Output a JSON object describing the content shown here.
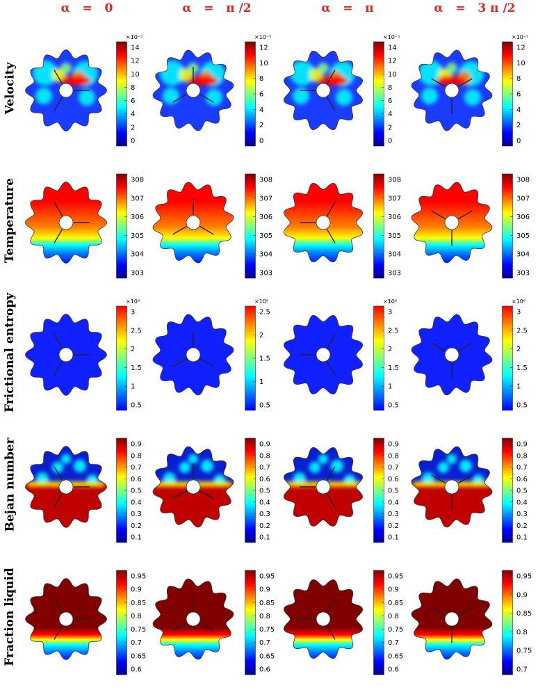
{
  "columns": [
    "α   =   0",
    "α   =   π /2",
    "α   =   π",
    "α   =   3 π /2"
  ],
  "rows": [
    {
      "label": "Velocity",
      "field": "velocity",
      "colorbars": [
        {
          "multiplier": "×10⁻⁵",
          "ticks": [
            "14",
            "12",
            "10",
            "8",
            "6",
            "4",
            "2",
            "0"
          ]
        },
        {
          "multiplier": "×10⁻⁵",
          "ticks": [
            "12",
            "10",
            "8",
            "6",
            "4",
            "2",
            "0"
          ]
        },
        {
          "multiplier": "×10⁻⁵",
          "ticks": [
            "14",
            "12",
            "10",
            "8",
            "6",
            "4",
            "2",
            "0"
          ]
        },
        {
          "multiplier": "×10⁻⁵",
          "ticks": [
            "12",
            "10",
            "8",
            "6",
            "4",
            "2",
            "0"
          ]
        }
      ]
    },
    {
      "label": "Temperature",
      "field": "temperature",
      "colorbars": [
        {
          "multiplier": "",
          "ticks": [
            "308",
            "307",
            "306",
            "305",
            "304",
            "303"
          ]
        },
        {
          "multiplier": "",
          "ticks": [
            "308",
            "307",
            "306",
            "305",
            "304",
            "303"
          ]
        },
        {
          "multiplier": "",
          "ticks": [
            "308",
            "307",
            "306",
            "305",
            "304",
            "303"
          ]
        },
        {
          "multiplier": "",
          "ticks": [
            "308",
            "307",
            "306",
            "305",
            "304",
            "303"
          ]
        }
      ]
    },
    {
      "label": "Frictional entropy",
      "field": "entropy",
      "colorbars": [
        {
          "multiplier": "×10⁸",
          "ticks": [
            "3",
            "2.5",
            "2",
            "1.5",
            "1",
            "0.5"
          ]
        },
        {
          "multiplier": "×10⁸",
          "ticks": [
            "2.5",
            "2",
            "1.5",
            "1",
            "0.5"
          ]
        },
        {
          "multiplier": "×10⁸",
          "ticks": [
            "3",
            "2.5",
            "2",
            "1.5",
            "1",
            "0.5"
          ]
        },
        {
          "multiplier": "×10⁸",
          "ticks": [
            "3",
            "2.5",
            "2",
            "1.5",
            "1",
            "0.5"
          ]
        }
      ]
    },
    {
      "label": "Bejan  number",
      "field": "bejan",
      "colorbars": [
        {
          "multiplier": "",
          "ticks": [
            "0.9",
            "0.8",
            "0.7",
            "0.6",
            "0.5",
            "0.4",
            "0.3",
            "0.2",
            "0.1"
          ]
        },
        {
          "multiplier": "",
          "ticks": [
            "0.9",
            "0.8",
            "0.7",
            "0.6",
            "0.5",
            "0.4",
            "0.3",
            "0.2",
            "0.1"
          ]
        },
        {
          "multiplier": "",
          "ticks": [
            "0.9",
            "0.8",
            "0.7",
            "0.6",
            "0.5",
            "0.4",
            "0.3",
            "0.2",
            "0.1"
          ]
        },
        {
          "multiplier": "",
          "ticks": [
            "0.9",
            "0.8",
            "0.7",
            "0.6",
            "0.5",
            "0.4",
            "0.3",
            "0.2",
            "0.1"
          ]
        }
      ]
    },
    {
      "label": "Fraction liquid",
      "field": "liquid",
      "colorbars": [
        {
          "multiplier": "",
          "ticks": [
            "0.95",
            "0.9",
            "0.85",
            "0.8",
            "0.75",
            "0.7",
            "0.65",
            "0.6"
          ]
        },
        {
          "multiplier": "",
          "ticks": [
            "0.95",
            "0.9",
            "0.85",
            "0.8",
            "0.75",
            "0.7",
            "0.65",
            "0.6"
          ]
        },
        {
          "multiplier": "",
          "ticks": [
            "0.95",
            "0.9",
            "0.85",
            "0.8",
            "0.75",
            "0.7",
            "0.65",
            "0.6"
          ]
        },
        {
          "multiplier": "",
          "ticks": [
            "0.95",
            "0.9",
            "0.85",
            "0.8",
            "0.75",
            "0.7"
          ]
        }
      ]
    }
  ],
  "colormap": [
    "#00008f",
    "#0000ff",
    "#0080ff",
    "#00ffff",
    "#80ff80",
    "#ffff00",
    "#ff8000",
    "#ff0000",
    "#800000"
  ],
  "colors": {
    "title": "#e8231f"
  }
}
